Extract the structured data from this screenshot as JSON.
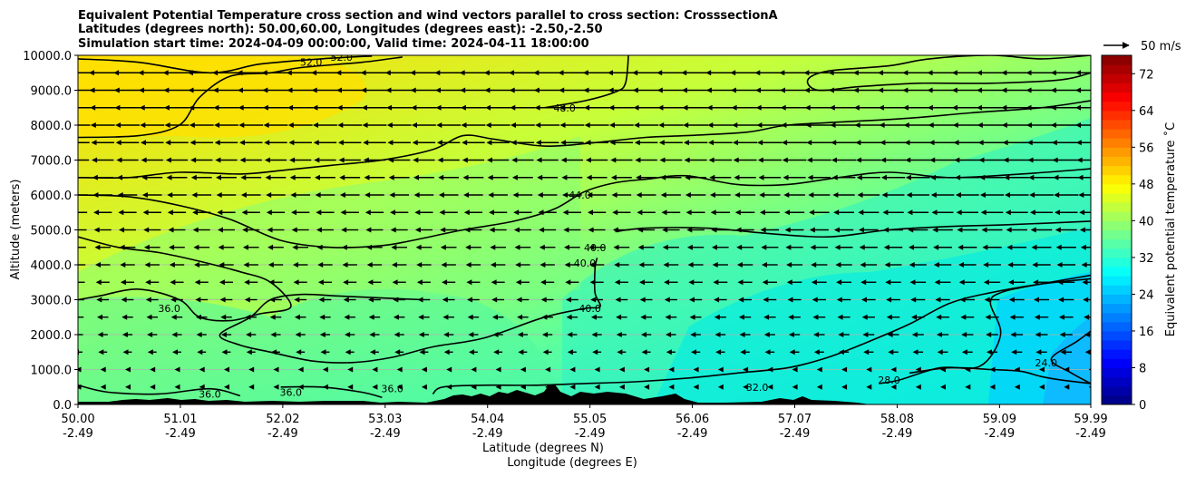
{
  "chart_data": {
    "type": "heatmap",
    "title_lines": [
      "Equivalent Potential Temperature cross section and wind vectors parallel to cross section: CrosssectionA",
      "Latitudes (degrees north): 50.00,60.00, Longitudes (degrees east): -2.50,-2.50",
      "Simulation start time: 2024-04-09 00:00:00, Valid time: 2024-04-11 18:00:00"
    ],
    "xlabel": "Latitude (degrees N)",
    "xlabel2": "Longitude (degrees E)",
    "ylabel": "Altitude (meters)",
    "xlim": [
      50.0,
      59.99
    ],
    "ylim": [
      0,
      10000
    ],
    "x_ticks": [
      {
        "lat": "50.00",
        "lon": "-2.49",
        "value": 50.0
      },
      {
        "lat": "51.01",
        "lon": "-2.49",
        "value": 51.01
      },
      {
        "lat": "52.02",
        "lon": "-2.49",
        "value": 52.02
      },
      {
        "lat": "53.03",
        "lon": "-2.49",
        "value": 53.03
      },
      {
        "lat": "54.04",
        "lon": "-2.49",
        "value": 54.04
      },
      {
        "lat": "55.05",
        "lon": "-2.49",
        "value": 55.05
      },
      {
        "lat": "56.06",
        "lon": "-2.49",
        "value": 56.06
      },
      {
        "lat": "57.07",
        "lon": "-2.49",
        "value": 57.07
      },
      {
        "lat": "58.08",
        "lon": "-2.49",
        "value": 58.08
      },
      {
        "lat": "59.09",
        "lon": "-2.49",
        "value": 59.09
      },
      {
        "lat": "59.99",
        "lon": "-2.49",
        "value": 59.99
      }
    ],
    "y_ticks": [
      {
        "label": "0.0",
        "value": 0
      },
      {
        "label": "1000.0",
        "value": 1000
      },
      {
        "label": "2000.0",
        "value": 2000
      },
      {
        "label": "3000.0",
        "value": 3000
      },
      {
        "label": "4000.0",
        "value": 4000
      },
      {
        "label": "5000.0",
        "value": 5000
      },
      {
        "label": "6000.0",
        "value": 6000
      },
      {
        "label": "7000.0",
        "value": 7000
      },
      {
        "label": "8000.0",
        "value": 8000
      },
      {
        "label": "9000.0",
        "value": 9000
      },
      {
        "label": "10000.0",
        "value": 10000
      }
    ],
    "grid": "horizontal",
    "colorbar": {
      "label": "Equivalent potential temperature ˚C",
      "range": [
        0,
        76
      ],
      "ticks": [
        "0",
        "8",
        "16",
        "24",
        "32",
        "40",
        "48",
        "56",
        "64",
        "72"
      ],
      "colormap": "jet"
    },
    "quiver_key": {
      "label": "50 m/s"
    },
    "contour_labels": [
      {
        "text": "52.0",
        "lat": 52.3,
        "alt": 9800
      },
      {
        "text": "52.0",
        "lat": 52.6,
        "alt": 9950
      },
      {
        "text": "48.0",
        "lat": 54.8,
        "alt": 8500
      },
      {
        "text": "44.0",
        "lat": 54.95,
        "alt": 6000
      },
      {
        "text": "40.0",
        "lat": 55.1,
        "alt": 4500
      },
      {
        "text": "40.0",
        "lat": 55.0,
        "alt": 4050
      },
      {
        "text": "40.0",
        "lat": 55.05,
        "alt": 2750
      },
      {
        "text": "36.0",
        "lat": 50.9,
        "alt": 2750
      },
      {
        "text": "36.0",
        "lat": 51.3,
        "alt": 300
      },
      {
        "text": "36.0",
        "lat": 52.1,
        "alt": 350
      },
      {
        "text": "36.0",
        "lat": 53.1,
        "alt": 450
      },
      {
        "text": "32.0",
        "lat": 56.7,
        "alt": 500
      },
      {
        "text": "28.0",
        "lat": 58.0,
        "alt": 700
      },
      {
        "text": "24.0",
        "lat": 59.55,
        "alt": 1200
      }
    ],
    "contours": [
      {
        "level": 52,
        "points": [
          [
            50.0,
            9900
          ],
          [
            50.6,
            9800
          ],
          [
            51.3,
            9500
          ],
          [
            51.8,
            9750
          ],
          [
            52.4,
            9900
          ],
          [
            52.9,
            9980
          ]
        ]
      },
      {
        "level": 48,
        "points": [
          [
            50.0,
            7650
          ],
          [
            50.6,
            7700
          ],
          [
            51.0,
            8000
          ],
          [
            51.2,
            8800
          ],
          [
            51.5,
            9400
          ],
          [
            51.9,
            9500
          ],
          [
            52.2,
            9650
          ],
          [
            52.8,
            9800
          ],
          [
            53.2,
            9950
          ]
        ]
      },
      {
        "level": 48,
        "points": [
          [
            54.6,
            8500
          ],
          [
            55.0,
            8700
          ],
          [
            55.3,
            8950
          ],
          [
            55.4,
            9200
          ],
          [
            55.43,
            10000
          ]
        ]
      },
      {
        "level": 48,
        "points": [
          [
            59.99,
            10000
          ],
          [
            59.5,
            9900
          ],
          [
            59.0,
            10000
          ],
          [
            58.4,
            9900
          ],
          [
            58.0,
            9700
          ],
          [
            57.4,
            9550
          ],
          [
            57.2,
            9300
          ],
          [
            57.3,
            9000
          ],
          [
            57.7,
            9100
          ],
          [
            58.3,
            9200
          ],
          [
            59.0,
            9200
          ],
          [
            59.7,
            9300
          ],
          [
            59.99,
            9500
          ]
        ]
      },
      {
        "level": 48,
        "points": [
          [
            59.99,
            8700
          ],
          [
            59.5,
            8500
          ],
          [
            58.8,
            8350
          ],
          [
            58.2,
            8200
          ],
          [
            57.6,
            8100
          ],
          [
            57.0,
            8000
          ],
          [
            56.6,
            7800
          ],
          [
            56.0,
            7700
          ],
          [
            55.6,
            7650
          ],
          [
            55.1,
            7500
          ],
          [
            54.6,
            7400
          ],
          [
            54.1,
            7600
          ],
          [
            53.8,
            7700
          ],
          [
            53.5,
            7300
          ],
          [
            53.0,
            7000
          ],
          [
            52.5,
            6850
          ],
          [
            52.0,
            6700
          ],
          [
            51.6,
            6600
          ],
          [
            51.0,
            6650
          ],
          [
            50.5,
            6500
          ],
          [
            50.0,
            6500
          ]
        ]
      },
      {
        "level": 44,
        "points": [
          [
            50.0,
            6000
          ],
          [
            50.5,
            5950
          ],
          [
            51.0,
            5700
          ],
          [
            51.5,
            5300
          ],
          [
            52.0,
            4700
          ],
          [
            52.5,
            4500
          ],
          [
            53.0,
            4550
          ],
          [
            53.3,
            4700
          ],
          [
            53.8,
            5000
          ],
          [
            54.3,
            5250
          ],
          [
            54.7,
            5600
          ],
          [
            55.0,
            6100
          ],
          [
            55.3,
            6350
          ],
          [
            55.6,
            6450
          ],
          [
            56.0,
            6550
          ],
          [
            56.5,
            6300
          ],
          [
            57.0,
            6300
          ],
          [
            57.5,
            6500
          ],
          [
            58.0,
            6650
          ],
          [
            58.6,
            6500
          ],
          [
            59.3,
            6600
          ],
          [
            59.99,
            6750
          ]
        ]
      },
      {
        "level": 40,
        "points": [
          [
            50.0,
            4800
          ],
          [
            50.4,
            4500
          ],
          [
            50.8,
            4350
          ],
          [
            51.2,
            4100
          ],
          [
            51.6,
            3800
          ],
          [
            51.9,
            3500
          ],
          [
            52.1,
            2800
          ],
          [
            51.8,
            2600
          ],
          [
            51.5,
            2400
          ],
          [
            51.2,
            2500
          ],
          [
            51.0,
            3000
          ],
          [
            50.6,
            3300
          ],
          [
            50.2,
            3100
          ],
          [
            50.0,
            3000
          ]
        ]
      },
      {
        "level": 40,
        "points": [
          [
            53.4,
            3000
          ],
          [
            53.0,
            3050
          ],
          [
            52.6,
            3100
          ],
          [
            52.2,
            3150
          ],
          [
            51.9,
            3000
          ],
          [
            51.7,
            2500
          ],
          [
            51.4,
            2000
          ],
          [
            51.6,
            1700
          ],
          [
            51.9,
            1500
          ],
          [
            52.3,
            1250
          ],
          [
            52.7,
            1200
          ],
          [
            53.1,
            1350
          ],
          [
            53.5,
            1650
          ],
          [
            54.0,
            1900
          ],
          [
            54.6,
            2500
          ],
          [
            55.0,
            2750
          ],
          [
            55.15,
            2800
          ],
          [
            55.1,
            3200
          ],
          [
            55.1,
            3900
          ],
          [
            55.12,
            4200
          ]
        ]
      },
      {
        "level": 40,
        "points": [
          [
            55.3,
            4950
          ],
          [
            55.6,
            5050
          ],
          [
            56.2,
            5050
          ],
          [
            56.8,
            4900
          ],
          [
            57.4,
            4800
          ],
          [
            58.0,
            5000
          ],
          [
            58.6,
            5100
          ],
          [
            59.2,
            5150
          ],
          [
            59.99,
            5250
          ]
        ]
      },
      {
        "level": 36,
        "points": [
          [
            59.99,
            3600
          ],
          [
            59.5,
            3450
          ],
          [
            59.0,
            3200
          ],
          [
            58.6,
            2900
          ],
          [
            58.2,
            2300
          ],
          [
            57.8,
            1800
          ],
          [
            57.4,
            1350
          ],
          [
            57.0,
            1050
          ],
          [
            56.5,
            900
          ],
          [
            56.0,
            750
          ],
          [
            55.5,
            650
          ],
          [
            55.0,
            600
          ],
          [
            54.5,
            550
          ],
          [
            54.0,
            550
          ],
          [
            53.6,
            500
          ],
          [
            53.5,
            300
          ]
        ]
      },
      {
        "level": 36,
        "points": [
          [
            50.0,
            550
          ],
          [
            50.3,
            350
          ],
          [
            50.8,
            300
          ],
          [
            51.3,
            450
          ],
          [
            51.6,
            250
          ]
        ]
      },
      {
        "level": 36,
        "points": [
          [
            52.0,
            500
          ],
          [
            52.4,
            500
          ],
          [
            52.8,
            350
          ],
          [
            53.0,
            200
          ]
        ]
      },
      {
        "level": 28,
        "points": [
          [
            58.2,
            900
          ],
          [
            58.6,
            1050
          ],
          [
            59.0,
            1000
          ],
          [
            59.3,
            950
          ],
          [
            59.5,
            800
          ],
          [
            59.7,
            700
          ],
          [
            59.99,
            600
          ]
        ]
      },
      {
        "level": 32,
        "points": [
          [
            59.99,
            3700
          ],
          [
            59.4,
            3400
          ],
          [
            59.1,
            3200
          ],
          [
            59.0,
            2900
          ],
          [
            59.1,
            2000
          ],
          [
            58.9,
            1100
          ],
          [
            58.5,
            1050
          ],
          [
            58.1,
            700
          ],
          [
            57.9,
            600
          ]
        ]
      },
      {
        "level": 24,
        "points": [
          [
            59.99,
            2100
          ],
          [
            59.85,
            1800
          ],
          [
            59.6,
            1300
          ],
          [
            59.8,
            900
          ],
          [
            59.99,
            600
          ]
        ]
      }
    ],
    "wind": "leftward vectors parallel to cross section; strongest aloft (~25-30 m/s near 9000 m), weak near surface"
  }
}
